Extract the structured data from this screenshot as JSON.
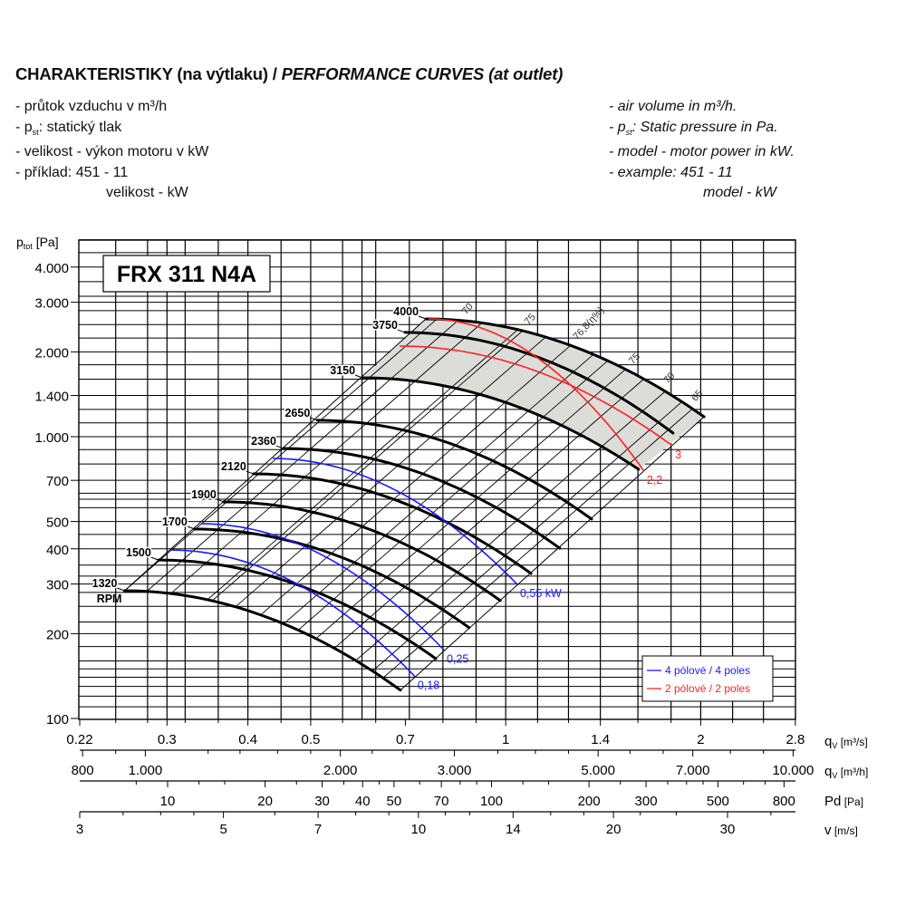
{
  "header": {
    "title_cz": "CHARAKTERISTIKY (na výtlaku) / ",
    "title_en": "PERFORMANCE CURVES (at outlet)"
  },
  "notes_cz": [
    {
      "dash": "-",
      "pre": "průtok vzduchu v m³/h",
      "sub": "",
      "post": ""
    },
    {
      "dash": "-",
      "pre": "p",
      "sub": "st",
      "post": ": statický tlak"
    },
    {
      "dash": "-",
      "pre": "velikost - výkon motoru v kW",
      "sub": "",
      "post": ""
    },
    {
      "dash": "-",
      "pre": "příklad:    451 - 11",
      "sub": "",
      "post": ""
    }
  ],
  "notes_cz_extra": "velikost - kW",
  "notes_en": [
    {
      "dash": "-",
      "pre": "air volume in m³/h.",
      "sub": "",
      "post": ""
    },
    {
      "dash": "-",
      "pre": "p",
      "sub": "st",
      "post": ": Static pressure in Pa."
    },
    {
      "dash": "-",
      "pre": "model - motor power in kW.",
      "sub": "",
      "post": ""
    },
    {
      "dash": "-",
      "pre": "example:  451 - 11",
      "sub": "",
      "post": ""
    }
  ],
  "notes_en_extra": "model - kW",
  "chart_data": {
    "type": "line",
    "title": "FRX 311 N4A",
    "ylabel_main": "p",
    "ylabel_sub": "tot",
    "ylabel_unit": " [Pa]",
    "yscale": "log",
    "ylim": [
      100,
      5060
    ],
    "xscale": "log",
    "xlim": [
      0.22,
      2.8
    ],
    "grid": true,
    "y_ticks": [
      {
        "v": 4000,
        "label": "4.000"
      },
      {
        "v": 3000,
        "label": "3.000"
      },
      {
        "v": 2000,
        "label": "2.000"
      },
      {
        "v": 1400,
        "label": "1.400"
      },
      {
        "v": 1000,
        "label": "1.000"
      },
      {
        "v": 700,
        "label": "700"
      },
      {
        "v": 500,
        "label": "500"
      },
      {
        "v": 400,
        "label": "400"
      },
      {
        "v": 300,
        "label": "300"
      },
      {
        "v": 200,
        "label": "200"
      },
      {
        "v": 100,
        "label": "100"
      }
    ],
    "y_grid": [
      110,
      120,
      130,
      140,
      150,
      160,
      180,
      200,
      220,
      250,
      280,
      300,
      320,
      350,
      400,
      450,
      500,
      560,
      600,
      630,
      700,
      800,
      900,
      1000,
      1120,
      1250,
      1400,
      1600,
      1800,
      2000,
      2240,
      2500,
      2800,
      3000,
      3150,
      3550,
      4000,
      4500,
      5000
    ],
    "x_grid": [
      0.25,
      0.28,
      0.3,
      0.32,
      0.36,
      0.4,
      0.45,
      0.5,
      0.56,
      0.6,
      0.63,
      0.71,
      0.8,
      0.9,
      1,
      1.12,
      1.25,
      1.4,
      1.6,
      1.8,
      2,
      2.24,
      2.5
    ],
    "axes": [
      {
        "name": "qv_m3s",
        "label": "q",
        "label_sub": "V",
        "unit": " [m³/s]",
        "ticks": [
          {
            "v": 0.22,
            "label": "0.22"
          },
          {
            "v": 0.3,
            "label": "0.3"
          },
          {
            "v": 0.4,
            "label": "0.4"
          },
          {
            "v": 0.5,
            "label": "0.5"
          },
          {
            "v": 0.7,
            "label": "0.7"
          },
          {
            "v": 1,
            "label": "1"
          },
          {
            "v": 1.4,
            "label": "1.4"
          },
          {
            "v": 2,
            "label": "2"
          },
          {
            "v": 2.8,
            "label": "2.8"
          }
        ]
      },
      {
        "name": "qv_m3h",
        "label": "q",
        "label_sub": "V",
        "unit": " [m³/h]",
        "ticks": [
          {
            "v": 800,
            "label": "800"
          },
          {
            "v": 1000,
            "label": "1.000"
          },
          {
            "v": 2000,
            "label": "2.000"
          },
          {
            "v": 3000,
            "label": "3.000"
          },
          {
            "v": 5000,
            "label": "5.000"
          },
          {
            "v": 7000,
            "label": "7.000"
          },
          {
            "v": 10000,
            "label": "10.000"
          }
        ]
      },
      {
        "name": "pd",
        "label": "Pd",
        "label_sub": "",
        "unit": " [Pa]",
        "ticks": [
          {
            "v": 10,
            "label": "10"
          },
          {
            "v": 20,
            "label": "20"
          },
          {
            "v": 30,
            "label": "30"
          },
          {
            "v": 40,
            "label": "40"
          },
          {
            "v": 50,
            "label": "50"
          },
          {
            "v": 70,
            "label": "70"
          },
          {
            "v": 100,
            "label": "100"
          },
          {
            "v": 200,
            "label": "200"
          },
          {
            "v": 300,
            "label": "300"
          },
          {
            "v": 500,
            "label": "500"
          },
          {
            "v": 800,
            "label": "800"
          }
        ]
      },
      {
        "name": "v",
        "label": "v",
        "label_sub": "",
        "unit": " [m/s]",
        "ticks": [
          {
            "v": 3,
            "label": "3"
          },
          {
            "v": 5,
            "label": "5"
          },
          {
            "v": 7,
            "label": "7"
          },
          {
            "v": 10,
            "label": "10"
          },
          {
            "v": 14,
            "label": "14"
          },
          {
            "v": 20,
            "label": "20"
          },
          {
            "v": 30,
            "label": "30"
          }
        ]
      }
    ],
    "rpm_curves": [
      {
        "rpm": "1320",
        "unit": "RPM",
        "start": [
          0.258,
          284
        ],
        "end": [
          0.688,
          126
        ]
      },
      {
        "rpm": "1500",
        "start": [
          0.291,
          365
        ],
        "end": [
          0.78,
          163
        ]
      },
      {
        "rpm": "1700",
        "start": [
          0.331,
          470
        ],
        "end": [
          0.878,
          210
        ]
      },
      {
        "rpm": "1900",
        "start": [
          0.367,
          587
        ],
        "end": [
          0.981,
          262
        ]
      },
      {
        "rpm": "2120",
        "start": [
          0.408,
          738
        ],
        "end": [
          1.094,
          327
        ]
      },
      {
        "rpm": "2360",
        "start": [
          0.454,
          908
        ],
        "end": [
          1.212,
          402
        ]
      },
      {
        "rpm": "2650",
        "start": [
          0.512,
          1143
        ],
        "end": [
          1.357,
          510
        ]
      },
      {
        "rpm": "3150",
        "start": [
          0.601,
          1618
        ],
        "end": [
          1.604,
          766
        ]
      },
      {
        "rpm": "3750",
        "start": [
          0.699,
          2344
        ],
        "end": [
          1.813,
          1030
        ]
      },
      {
        "rpm": "4000",
        "start": [
          0.753,
          2618
        ],
        "end": [
          2.024,
          1177
        ]
      }
    ],
    "power_curves": [
      {
        "label": "0,18",
        "poles": 4,
        "start": [
          0.304,
          396
        ],
        "end": [
          0.724,
          141
        ]
      },
      {
        "label": "0,25",
        "poles": 4,
        "start": [
          0.339,
          491
        ],
        "end": [
          0.803,
          175
        ]
      },
      {
        "label": "0,55 kW",
        "poles": 4,
        "start": [
          0.437,
          837
        ],
        "end": [
          1.042,
          299
        ]
      },
      {
        "label": "3",
        "poles": 2,
        "start": [
          0.686,
          2097
        ],
        "end": [
          1.808,
          929
        ]
      },
      {
        "label": "2,2",
        "poles": 2,
        "start": [
          0.76,
          2618
        ],
        "end": [
          1.635,
          755
        ]
      }
    ],
    "system_lines_k": [
      4266,
      3000,
      2200,
      1700,
      1050,
      900,
      600,
      380,
      266
    ],
    "efficiency_lines": [
      {
        "label": "70",
        "k": 3626
      },
      {
        "label": "75",
        "k": 2108
      },
      {
        "label": "76,8(η%)",
        "k": 1330
      },
      {
        "label": "75",
        "k": 740
      },
      {
        "label": "70",
        "k": 466
      },
      {
        "label": "65",
        "k": 333
      }
    ],
    "legend": {
      "placement": "bottom-right",
      "items": [
        {
          "label": "4 pólové / 4 poles",
          "color": "#1a1aff"
        },
        {
          "label": "2 pólové / 2 poles",
          "color": "#ff2020"
        }
      ]
    },
    "colors": {
      "four_pole": "#1a1aff",
      "two_pole": "#ff2020",
      "region": "#dcdcd8",
      "curve": "#000000"
    }
  }
}
